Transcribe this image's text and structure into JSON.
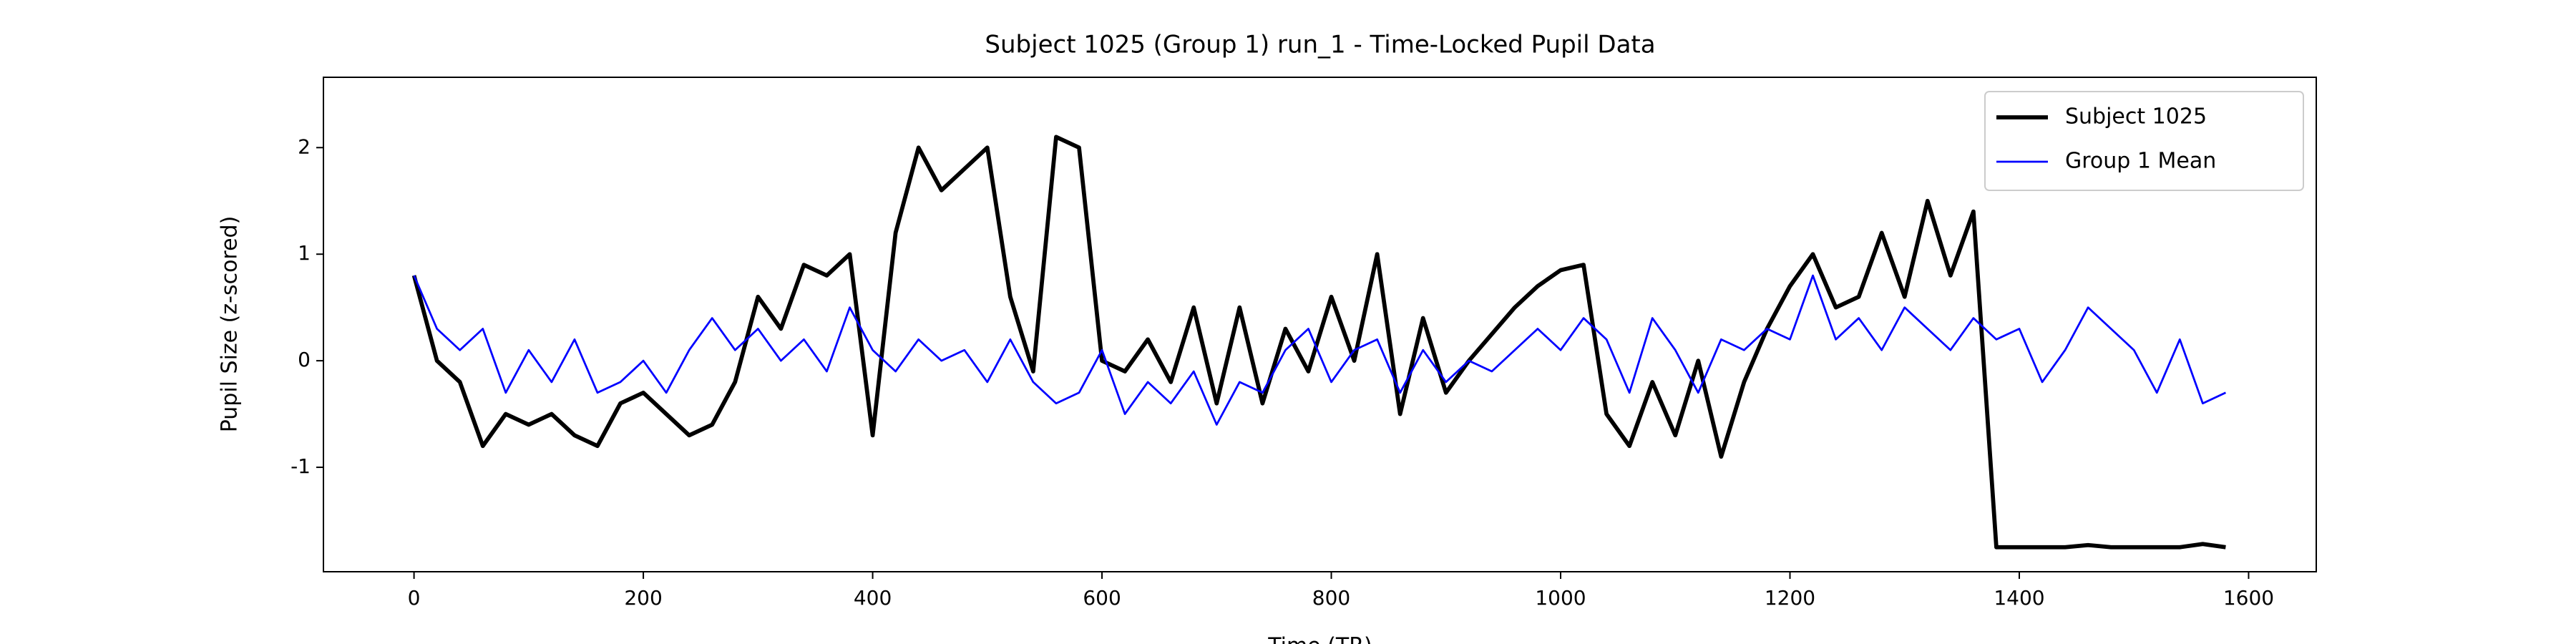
{
  "chart_data": {
    "type": "line",
    "title": "Subject 1025 (Group 1) run_1 - Time-Locked Pupil Data",
    "xlabel": "Time (TR)",
    "ylabel": "Pupil Size (z-scored)",
    "x": [
      0,
      20,
      40,
      60,
      80,
      100,
      120,
      140,
      160,
      180,
      200,
      220,
      240,
      260,
      280,
      300,
      320,
      340,
      360,
      380,
      400,
      420,
      440,
      460,
      480,
      500,
      520,
      540,
      560,
      580,
      600,
      620,
      640,
      660,
      680,
      700,
      720,
      740,
      760,
      780,
      800,
      820,
      840,
      860,
      880,
      900,
      920,
      940,
      960,
      980,
      1000,
      1020,
      1040,
      1060,
      1080,
      1100,
      1120,
      1140,
      1160,
      1180,
      1200,
      1220,
      1240,
      1260,
      1280,
      1300,
      1320,
      1340,
      1360,
      1380,
      1400,
      1420,
      1440,
      1460,
      1480,
      1500,
      1520,
      1540,
      1560,
      1580
    ],
    "series": [
      {
        "name": "Subject 1025",
        "color": "#000000",
        "width": 2.5,
        "values": [
          0.8,
          0.0,
          -0.2,
          -0.8,
          -0.5,
          -0.6,
          -0.5,
          -0.7,
          -0.8,
          -0.4,
          -0.3,
          -0.5,
          -0.7,
          -0.6,
          -0.2,
          0.6,
          0.3,
          0.9,
          0.8,
          1.0,
          -0.7,
          1.2,
          2.0,
          1.6,
          1.8,
          2.0,
          0.6,
          -0.1,
          2.1,
          2.0,
          0.0,
          -0.1,
          0.2,
          -0.2,
          0.5,
          -0.4,
          0.5,
          -0.4,
          0.3,
          -0.1,
          0.6,
          0.0,
          1.0,
          -0.5,
          0.4,
          -0.3,
          0.0,
          0.25,
          0.5,
          0.7,
          0.85,
          0.9,
          -0.5,
          -0.8,
          -0.2,
          -0.7,
          0.0,
          -0.9,
          -0.2,
          0.3,
          0.7,
          1.0,
          0.5,
          0.6,
          1.2,
          0.6,
          1.5,
          0.8,
          1.4,
          -1.75,
          -1.75,
          -1.75,
          -1.75,
          -1.73,
          -1.75,
          -1.75,
          -1.75,
          -1.75,
          -1.72,
          -1.75
        ]
      },
      {
        "name": "Group 1 Mean",
        "color": "#0000ff",
        "width": 1.2,
        "values": [
          0.8,
          0.3,
          0.1,
          0.3,
          -0.3,
          0.1,
          -0.2,
          0.2,
          -0.3,
          -0.2,
          0.0,
          -0.3,
          0.1,
          0.4,
          0.1,
          0.3,
          0.0,
          0.2,
          -0.1,
          0.5,
          0.1,
          -0.1,
          0.2,
          0.0,
          0.1,
          -0.2,
          0.2,
          -0.2,
          -0.4,
          -0.3,
          0.1,
          -0.5,
          -0.2,
          -0.4,
          -0.1,
          -0.6,
          -0.2,
          -0.3,
          0.1,
          0.3,
          -0.2,
          0.1,
          0.2,
          -0.3,
          0.1,
          -0.2,
          0.0,
          -0.1,
          0.1,
          0.3,
          0.1,
          0.4,
          0.2,
          -0.3,
          0.4,
          0.1,
          -0.3,
          0.2,
          0.1,
          0.3,
          0.2,
          0.8,
          0.2,
          0.4,
          0.1,
          0.5,
          0.3,
          0.1,
          0.4,
          0.2,
          0.3,
          -0.2,
          0.1,
          0.5,
          0.3,
          0.1,
          -0.3,
          0.2,
          -0.4,
          -0.3
        ]
      }
    ],
    "xlim": [
      -79,
      1659
    ],
    "ylim": [
      -1.98,
      2.66
    ],
    "xticks": [
      0,
      200,
      400,
      600,
      800,
      1000,
      1200,
      1400,
      1600
    ],
    "yticks": [
      -1,
      0,
      1,
      2
    ],
    "legend": "upper right"
  }
}
